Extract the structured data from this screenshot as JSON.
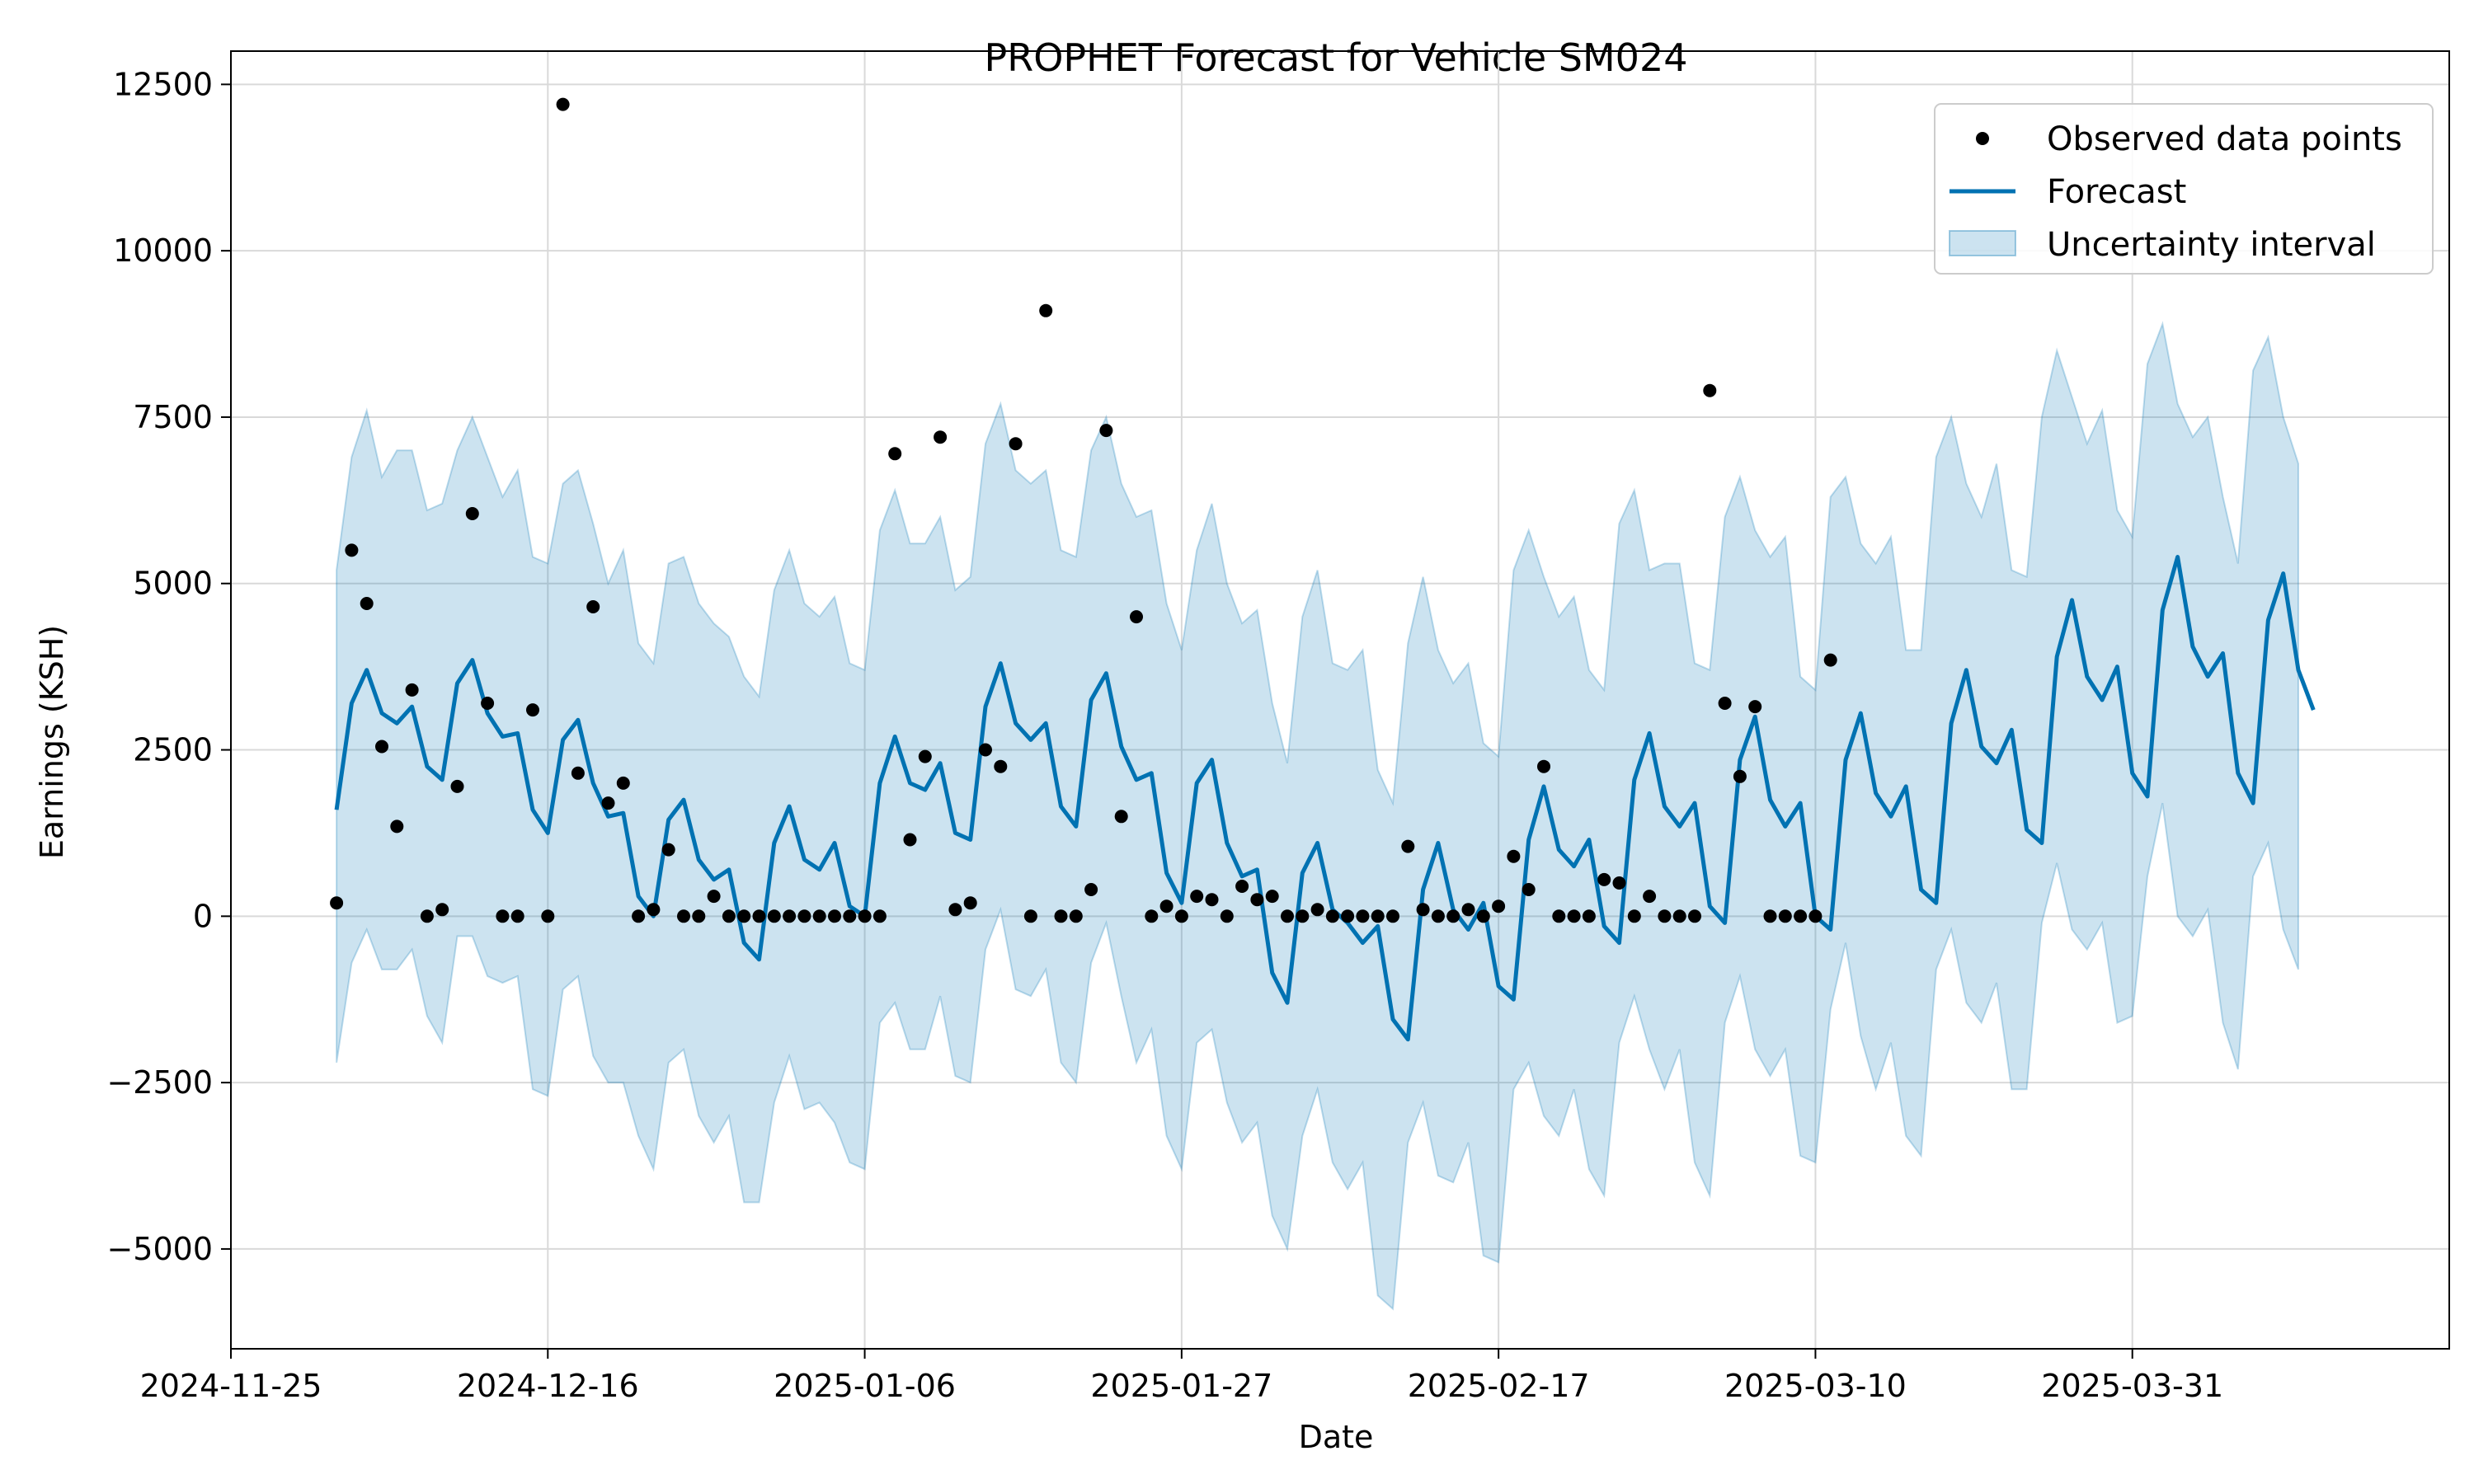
{
  "chart_data": {
    "type": "line",
    "title": "PROPHET Forecast for Vehicle SM024",
    "xlabel": "Date",
    "ylabel": "Earnings (KSH)",
    "x_start": "2024-12-02",
    "xlim": [
      "2024-11-25",
      "2025-04-21"
    ],
    "ylim": [
      -6500,
      13000
    ],
    "x_ticks": [
      "2024-11-25",
      "2024-12-16",
      "2025-01-06",
      "2025-01-27",
      "2025-02-17",
      "2025-03-10",
      "2025-03-31"
    ],
    "y_ticks": [
      -5000,
      -2500,
      0,
      2500,
      5000,
      7500,
      10000,
      12500
    ],
    "y_tick_labels": [
      "−5000",
      "−2500",
      "0",
      "2500",
      "5000",
      "7500",
      "10000",
      "12500"
    ],
    "grid": true,
    "legend_position": "top-right",
    "colors": {
      "forecast": "#0072B2",
      "band_fill": "#0072B2",
      "observed": "#000000",
      "grid": "#d9d9d9"
    },
    "legend": [
      {
        "label": "Observed data points",
        "kind": "marker"
      },
      {
        "label": "Forecast",
        "kind": "line"
      },
      {
        "label": "Uncertainty interval",
        "kind": "patch"
      }
    ],
    "series": [
      {
        "name": "Observed data points",
        "kind": "scatter",
        "x": [
          "2024-12-02",
          "2024-12-03",
          "2024-12-04",
          "2024-12-05",
          "2024-12-06",
          "2024-12-07",
          "2024-12-08",
          "2024-12-09",
          "2024-12-10",
          "2024-12-11",
          "2024-12-12",
          "2024-12-13",
          "2024-12-14",
          "2024-12-15",
          "2024-12-16",
          "2024-12-17",
          "2024-12-18",
          "2024-12-19",
          "2024-12-20",
          "2024-12-21",
          "2024-12-22",
          "2024-12-23",
          "2024-12-24",
          "2024-12-25",
          "2024-12-26",
          "2024-12-27",
          "2024-12-28",
          "2024-12-29",
          "2024-12-30",
          "2024-12-31",
          "2025-01-01",
          "2025-01-02",
          "2025-01-03",
          "2025-01-04",
          "2025-01-05",
          "2025-01-06",
          "2025-01-07",
          "2025-01-08",
          "2025-01-09",
          "2025-01-10",
          "2025-01-11",
          "2025-01-12",
          "2025-01-13",
          "2025-01-14",
          "2025-01-15",
          "2025-01-16",
          "2025-01-17",
          "2025-01-18",
          "2025-01-19",
          "2025-01-20",
          "2025-01-21",
          "2025-01-22",
          "2025-01-23",
          "2025-01-24",
          "2025-01-25",
          "2025-01-26",
          "2025-01-27",
          "2025-01-28",
          "2025-01-29",
          "2025-01-30",
          "2025-01-31",
          "2025-02-01",
          "2025-02-02",
          "2025-02-03",
          "2025-02-04",
          "2025-02-05",
          "2025-02-06",
          "2025-02-07",
          "2025-02-08",
          "2025-02-09",
          "2025-02-10",
          "2025-02-11",
          "2025-02-12",
          "2025-02-13",
          "2025-02-14",
          "2025-02-15",
          "2025-02-16",
          "2025-02-17",
          "2025-02-18",
          "2025-02-19",
          "2025-02-20",
          "2025-02-21",
          "2025-02-22",
          "2025-02-23",
          "2025-02-24",
          "2025-02-25",
          "2025-02-26",
          "2025-02-27",
          "2025-02-28",
          "2025-03-01",
          "2025-03-02",
          "2025-03-03",
          "2025-03-04",
          "2025-03-05",
          "2025-03-06",
          "2025-03-07",
          "2025-03-08",
          "2025-03-09",
          "2025-03-10",
          "2025-03-11"
        ],
        "y": [
          200,
          5500,
          4700,
          2550,
          1350,
          3400,
          0,
          100,
          1950,
          6050,
          3200,
          0,
          0,
          3100,
          0,
          12200,
          2150,
          4650,
          1700,
          2000,
          0,
          100,
          1000,
          0,
          0,
          300,
          0,
          0,
          0,
          0,
          0,
          0,
          0,
          0,
          0,
          0,
          0,
          6950,
          1150,
          2400,
          7200,
          100,
          200,
          2500,
          2250,
          7100,
          0,
          9100,
          0,
          0,
          400,
          7300,
          1500,
          4500,
          0,
          150,
          0,
          300,
          250,
          0,
          450,
          250,
          300,
          0,
          0,
          100,
          0,
          0,
          0,
          0,
          0,
          1050,
          100,
          0,
          0,
          100,
          0,
          150,
          900,
          400,
          2250,
          0,
          0,
          0,
          550,
          500,
          0,
          300,
          0,
          0,
          0,
          7900,
          3200,
          2100,
          3150,
          0,
          0,
          0,
          0,
          3850
        ]
      },
      {
        "name": "Forecast",
        "kind": "line",
        "x_start": "2024-12-02",
        "y": [
          1600,
          3200,
          3700,
          3050,
          2900,
          3150,
          2250,
          2050,
          3500,
          3850,
          3050,
          2700,
          2750,
          1600,
          1250,
          2650,
          2950,
          2000,
          1500,
          1550,
          300,
          0,
          1450,
          1750,
          850,
          550,
          700,
          -400,
          -650,
          1100,
          1650,
          850,
          700,
          1100,
          150,
          0,
          2000,
          2700,
          2000,
          1900,
          2300,
          1250,
          1150,
          3150,
          3800,
          2900,
          2650,
          2900,
          1650,
          1350,
          3250,
          3650,
          2550,
          2050,
          2150,
          650,
          200,
          2000,
          2350,
          1100,
          600,
          700,
          -850,
          -1300,
          650,
          1100,
          100,
          -100,
          -400,
          -150,
          -1550,
          -1850,
          400,
          1100,
          100,
          -200,
          200,
          -1050,
          -1250,
          1150,
          1950,
          1000,
          750,
          1150,
          -150,
          -400,
          2050,
          2750,
          1650,
          1350,
          1700,
          150,
          -100,
          2350,
          3000,
          1750,
          1350,
          1700,
          0,
          -200,
          2350,
          3050,
          1850,
          1500,
          1950,
          400,
          200,
          2900,
          3700,
          2550,
          2300,
          2800,
          1300,
          1100,
          3900,
          4750,
          3600,
          3250,
          3750,
          2150,
          1800,
          4600,
          5400,
          4050,
          3600,
          3950,
          2150,
          1700,
          4450,
          5150,
          3700,
          3100
        ]
      },
      {
        "name": "Uncertainty interval",
        "kind": "band",
        "x_start": "2024-12-02",
        "upper": [
          5200,
          6900,
          7600,
          6600,
          7000,
          7000,
          6100,
          6200,
          7000,
          7500,
          6900,
          6300,
          6700,
          5400,
          5300,
          6500,
          6700,
          5900,
          5000,
          5500,
          4100,
          3800,
          5300,
          5400,
          4700,
          4400,
          4200,
          3600,
          3300,
          4900,
          5500,
          4700,
          4500,
          4800,
          3800,
          3700,
          5800,
          6400,
          5600,
          5600,
          6000,
          4900,
          5100,
          7100,
          7700,
          6700,
          6500,
          6700,
          5500,
          5400,
          7000,
          7500,
          6500,
          6000,
          6100,
          4700,
          4000,
          5500,
          6200,
          5000,
          4400,
          4600,
          3200,
          2300,
          4500,
          5200,
          3800,
          3700,
          4000,
          2200,
          1700,
          4100,
          5100,
          4000,
          3500,
          3800,
          2600,
          2400,
          5200,
          5800,
          5100,
          4500,
          4800,
          3700,
          3400,
          5900,
          6400,
          5200,
          5300,
          5300,
          3800,
          3700,
          6000,
          6600,
          5800,
          5400,
          5700,
          3600,
          3400,
          6300,
          6600,
          5600,
          5300,
          5700,
          4000,
          4000,
          6900,
          7500,
          6500,
          6000,
          6800,
          5200,
          5100,
          7500,
          8500,
          7800,
          7100,
          7600,
          6100,
          5700,
          8300,
          8900,
          7700,
          7200,
          7500,
          6300,
          5300,
          8200,
          8700,
          7500,
          6800
        ],
        "lower": [
          -2200,
          -700,
          -200,
          -800,
          -800,
          -500,
          -1500,
          -1900,
          -300,
          -300,
          -900,
          -1000,
          -900,
          -2600,
          -2700,
          -1100,
          -900,
          -2100,
          -2500,
          -2500,
          -3300,
          -3800,
          -2200,
          -2000,
          -3000,
          -3400,
          -3000,
          -4300,
          -4300,
          -2800,
          -2100,
          -2900,
          -2800,
          -3100,
          -3700,
          -3800,
          -1600,
          -1300,
          -2000,
          -2000,
          -1200,
          -2400,
          -2500,
          -500,
          100,
          -1100,
          -1200,
          -800,
          -2200,
          -2500,
          -700,
          -100,
          -1200,
          -2200,
          -1700,
          -3300,
          -3800,
          -1900,
          -1700,
          -2800,
          -3400,
          -3100,
          -4500,
          -5000,
          -3300,
          -2600,
          -3700,
          -4100,
          -3700,
          -5700,
          -5900,
          -3400,
          -2800,
          -3900,
          -4000,
          -3400,
          -5100,
          -5200,
          -2600,
          -2200,
          -3000,
          -3300,
          -2600,
          -3800,
          -4200,
          -1900,
          -1200,
          -2000,
          -2600,
          -2000,
          -3700,
          -4200,
          -1600,
          -900,
          -2000,
          -2400,
          -2000,
          -3600,
          -3700,
          -1400,
          -400,
          -1800,
          -2600,
          -1900,
          -3300,
          -3600,
          -800,
          -200,
          -1300,
          -1600,
          -1000,
          -2600,
          -2600,
          -100,
          800,
          -200,
          -500,
          -100,
          -1600,
          -1500,
          600,
          1700,
          0,
          -300,
          100,
          -1600,
          -2300,
          600,
          1100,
          -200,
          -800
        ]
      }
    ]
  }
}
